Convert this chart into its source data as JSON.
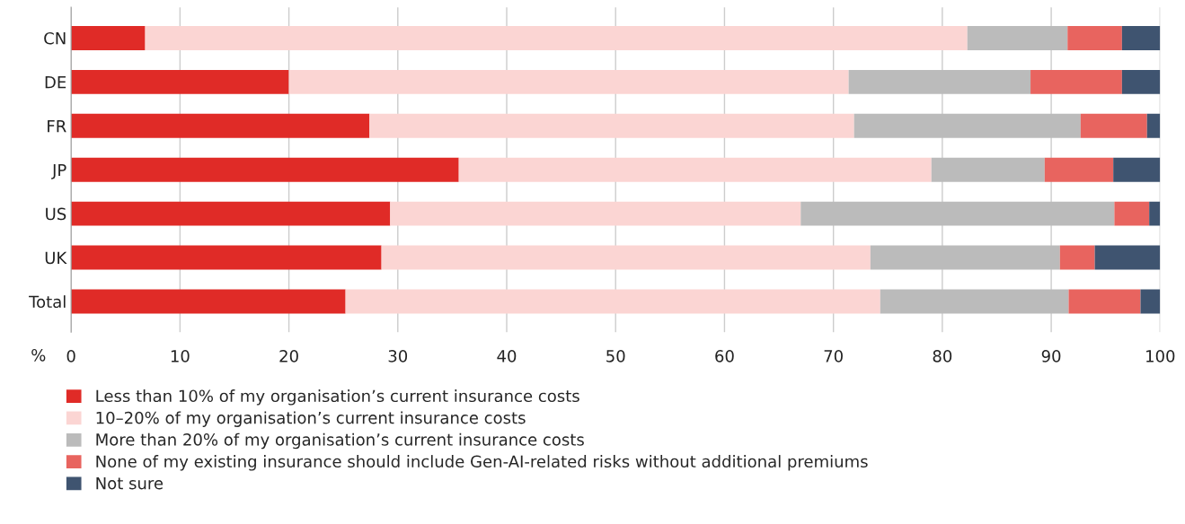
{
  "chart_data": {
    "type": "bar",
    "orientation": "horizontal",
    "stacked": true,
    "xlabel": "%",
    "categories": [
      "CN",
      "DE",
      "FR",
      "JP",
      "US",
      "UK",
      "Total"
    ],
    "series": [
      {
        "name": "Less than 10% of my organisation’s current insurance costs",
        "color": "#e02b27",
        "values": [
          6.8,
          20.0,
          27.4,
          35.6,
          29.3,
          28.5,
          25.2
        ]
      },
      {
        "name": "10–20% of my organisation’s current insurance costs",
        "color": "#fbd5d3",
        "values": [
          75.5,
          51.4,
          44.5,
          43.4,
          37.7,
          44.9,
          49.1
        ]
      },
      {
        "name": "More than 20% of my organisation’s current insurance costs",
        "color": "#bbbbbb",
        "values": [
          9.2,
          16.7,
          20.8,
          10.4,
          28.8,
          17.4,
          17.3
        ]
      },
      {
        "name": "None of my existing insurance should include Gen-AI-related risks without additional premiums",
        "color": "#e8645f",
        "values": [
          5.0,
          8.4,
          6.1,
          6.3,
          3.2,
          3.2,
          6.6
        ]
      },
      {
        "name": "Not sure",
        "color": "#3f5470",
        "values": [
          3.5,
          3.5,
          1.2,
          4.3,
          1.0,
          6.0,
          1.8
        ]
      }
    ],
    "xlim": [
      0,
      100
    ],
    "xticks": [
      0,
      10,
      20,
      30,
      40,
      50,
      60,
      70,
      80,
      90,
      100
    ],
    "grid": "x",
    "legend": "bottom"
  }
}
